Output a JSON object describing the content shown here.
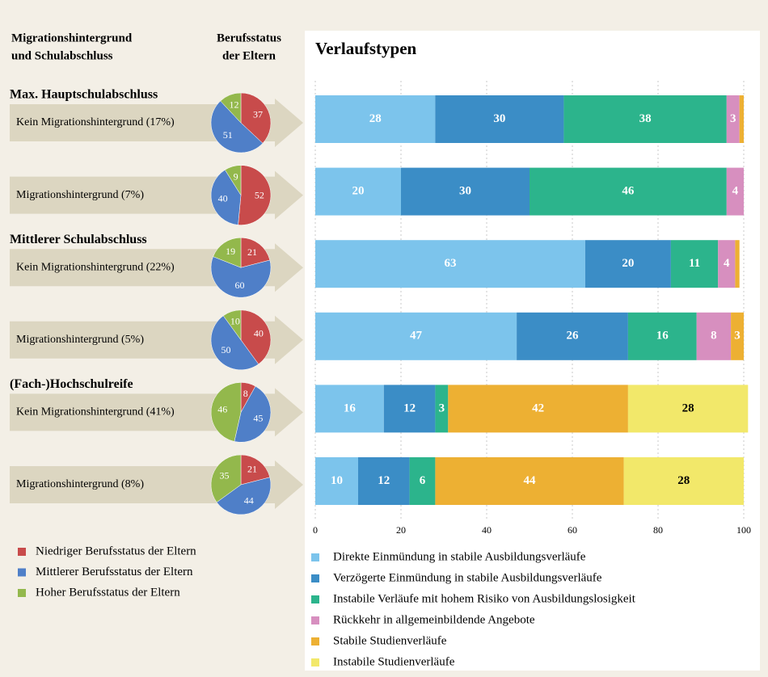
{
  "chart_data": [
    {
      "type": "pie",
      "row_header": [
        "Migrationshintergrund",
        "und Schulabschluss"
      ],
      "title": [
        "Berufsstatus",
        "der Eltern"
      ],
      "groups": [
        "Max. Hauptschulabschluss",
        "Mittlerer Schulabschluss",
        "(Fach-)Hochschulreife"
      ],
      "categories": [
        "Kein Migrationshintergrund (17%)",
        "Migrationshintergrund (7%)",
        "Kein Migrationshintergrund (22%)",
        "Migrationshintergrund (5%)",
        "Kein Migrationshintergrund (41%)",
        "Migrationshintergrund (8%)"
      ],
      "series": [
        {
          "name": "Niedriger Berufsstatus der Eltern",
          "color": "#c84b4b",
          "values": [
            37,
            52,
            21,
            40,
            8,
            21
          ]
        },
        {
          "name": "Mittlerer Berufsstatus der Eltern",
          "color": "#4f7fc8",
          "values": [
            51,
            40,
            60,
            50,
            45,
            44
          ]
        },
        {
          "name": "Hoher Berufsstatus der Eltern",
          "color": "#93b84c",
          "values": [
            12,
            9,
            19,
            10,
            46,
            35
          ]
        }
      ]
    },
    {
      "type": "bar",
      "orientation": "horizontal",
      "stacked": true,
      "title": "Verlaufstypen",
      "xlim": [
        0,
        100
      ],
      "xticks": [
        0,
        20,
        40,
        60,
        80,
        100
      ],
      "grid": true,
      "series": [
        {
          "name": "Direkte Einmündung in stabile Ausbildungsverläufe",
          "color": "#7cc4ec",
          "values": [
            28,
            20,
            63,
            47,
            16,
            10
          ]
        },
        {
          "name": "Verzögerte Einmündung in stabile Ausbildungsverläufe",
          "color": "#3b8dc6",
          "values": [
            30,
            30,
            20,
            26,
            12,
            12
          ]
        },
        {
          "name": "Instabile Verläufe mit hohem Risiko von Ausbildungslosigkeit",
          "color": "#2cb48c",
          "values": [
            38,
            46,
            11,
            16,
            3,
            6
          ]
        },
        {
          "name": "Rückkehr in allgemeinbildende Angebote",
          "color": "#d78fbf",
          "values": [
            3,
            4,
            4,
            8,
            0,
            0
          ]
        },
        {
          "name": "Stabile Studienverläufe",
          "color": "#edb033",
          "values": [
            1,
            0,
            1,
            3,
            42,
            44
          ]
        },
        {
          "name": "Instabile Studienverläufe",
          "color": "#f2e86a",
          "values": [
            0,
            0,
            0,
            0,
            28,
            28
          ]
        }
      ]
    }
  ]
}
